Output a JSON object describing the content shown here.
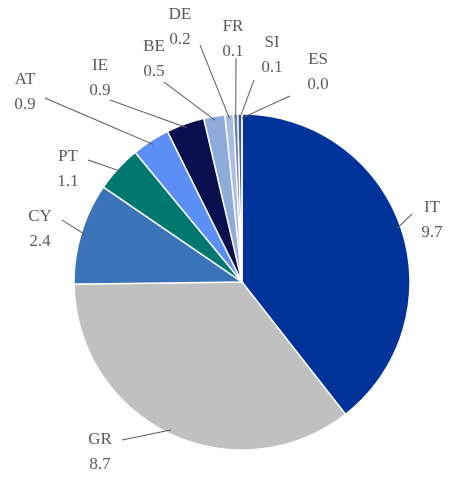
{
  "chart_data": {
    "type": "pie",
    "categories": [
      "IT",
      "GR",
      "CY",
      "PT",
      "AT",
      "IE",
      "BE",
      "DE",
      "FR",
      "SI",
      "ES"
    ],
    "values": [
      9.7,
      8.7,
      2.4,
      1.1,
      0.9,
      0.9,
      0.5,
      0.2,
      0.1,
      0.1,
      0.0
    ],
    "value_labels": [
      "9.7",
      "8.7",
      "2.4",
      "1.1",
      "0.9",
      "0.9",
      "0.5",
      "0.2",
      "0.1",
      "0.1",
      "0.0"
    ],
    "colors": [
      "#003399",
      "#c0c0c0",
      "#3b73b9",
      "#00786f",
      "#5b8ff5",
      "#0b0f4d",
      "#8eabda",
      "#a9bde6",
      "#6a7fb8",
      "#3d5aa0",
      "#1a3a8a"
    ]
  }
}
